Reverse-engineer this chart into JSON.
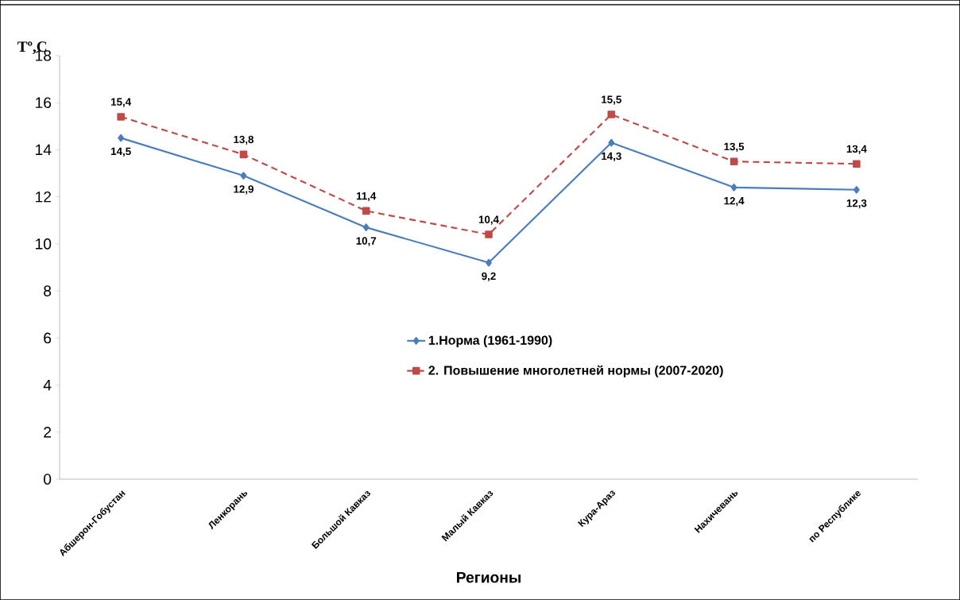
{
  "chart_data": {
    "type": "line",
    "ylabel": "Tº,C",
    "xlabel": "Регионы",
    "categories": [
      "Абшерон-Гобустан",
      "Ленкорань",
      "Большой Кавказ",
      "Малый Кавказ",
      "Кура-Араз",
      "Нахичевань",
      "по Республике"
    ],
    "series": [
      {
        "name": "1.Норма (1961-1990)",
        "color": "#4a7ebb",
        "marker": "diamond",
        "line_style": "solid",
        "values": [
          14.5,
          12.9,
          10.7,
          9.2,
          14.3,
          12.4,
          12.3
        ],
        "value_labels": [
          "14,5",
          "12,9",
          "10,7",
          "9,2",
          "14,3",
          "12,4",
          "12,3"
        ]
      },
      {
        "name": "2. Повышение многолетней нормы (2007-2020)",
        "color": "#be4b48",
        "marker": "square",
        "line_style": "dashed",
        "values": [
          15.4,
          13.8,
          11.4,
          10.4,
          15.5,
          13.5,
          13.4
        ],
        "value_labels": [
          "15,4",
          "13,8",
          "11,4",
          "10,4",
          "15,5",
          "13,5",
          "13,4"
        ]
      }
    ],
    "ylim": [
      0,
      18
    ],
    "yticks": [
      0,
      2,
      4,
      6,
      8,
      10,
      12,
      14,
      16,
      18
    ],
    "grid": false,
    "legend": "right"
  }
}
